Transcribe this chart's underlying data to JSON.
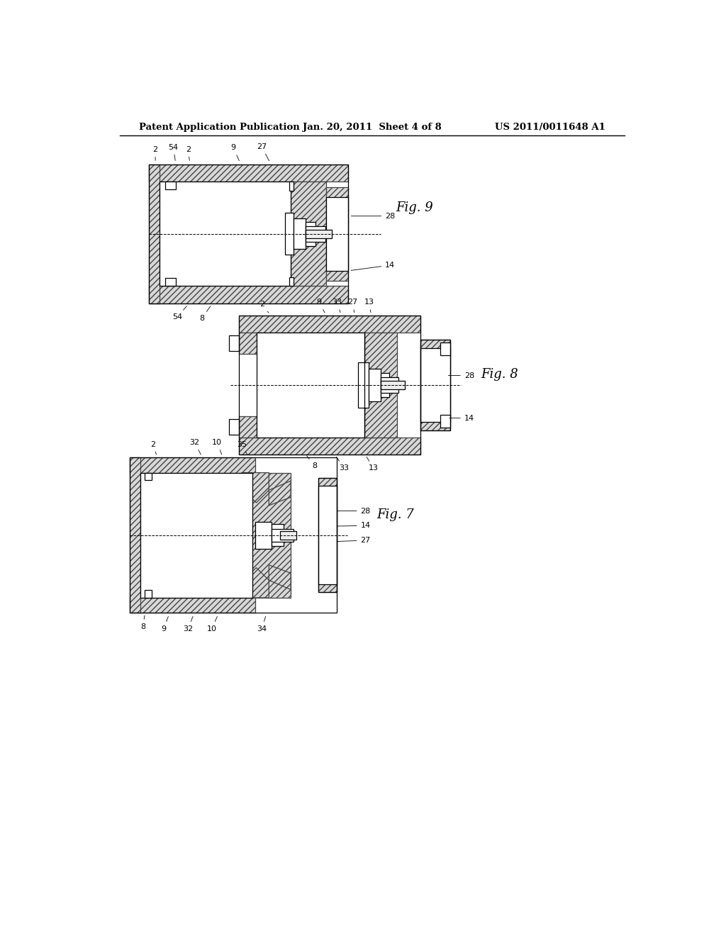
{
  "background_color": "#ffffff",
  "header_left": "Patent Application Publication",
  "header_center": "Jan. 20, 2011  Sheet 4 of 8",
  "header_right": "US 2011/0011648 A1",
  "header_fontsize": 9.5,
  "fig9_label": "Fig. 9",
  "fig8_label": "Fig. 8",
  "fig7_label": "Fig. 7",
  "hatch_fc": "#d8d8d8",
  "hatch_ec": "#444444",
  "hatch_pattern": "////",
  "line_color": "#000000",
  "line_lw": 0.9
}
